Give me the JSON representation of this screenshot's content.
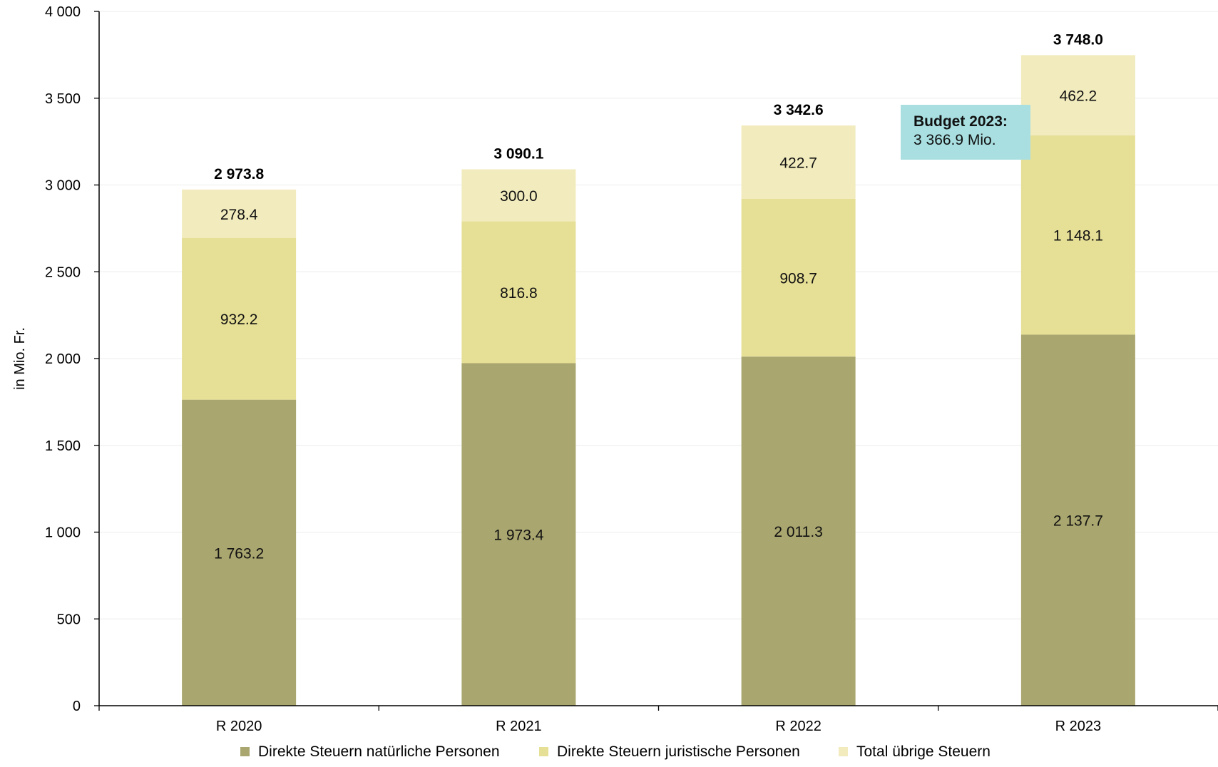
{
  "chart_data": {
    "type": "bar",
    "stacked": true,
    "title": "",
    "xlabel": "",
    "ylabel": "in Mio. Fr.",
    "ylim": [
      0,
      4000
    ],
    "yticks": [
      0,
      500,
      1000,
      1500,
      2000,
      2500,
      3000,
      3500,
      4000
    ],
    "ytick_labels": [
      "0",
      "500",
      "1 000",
      "1 500",
      "2 000",
      "2 500",
      "3 000",
      "3 500",
      "4 000"
    ],
    "categories": [
      "R 2020",
      "R 2021",
      "R 2022",
      "R 2023"
    ],
    "series": [
      {
        "name": "Direkte Steuern natürliche Personen",
        "color": "#a9a66f",
        "values": [
          1763.2,
          1973.4,
          2011.3,
          2137.7
        ],
        "labels": [
          "1 763.2",
          "1 973.4",
          "2 011.3",
          "2 137.7"
        ]
      },
      {
        "name": "Direkte Steuern juristische Personen",
        "color": "#e6df96",
        "values": [
          932.2,
          816.8,
          908.7,
          1148.1
        ],
        "labels": [
          "932.2",
          "816.8",
          "908.7",
          "1 148.1"
        ]
      },
      {
        "name": "Total übrige Steuern",
        "color": "#f1ebbd",
        "values": [
          278.4,
          300.0,
          422.7,
          462.2
        ],
        "labels": [
          "278.4",
          "300.0",
          "422.7",
          "462.2"
        ]
      }
    ],
    "totals": [
      2973.8,
      3090.1,
      3342.6,
      3748.0
    ],
    "total_labels": [
      "2 973.8",
      "3 090.1",
      "3 342.6",
      "3 748.0"
    ],
    "grid": true,
    "legend": "bottom",
    "annotation": {
      "title": "Budget 2023:",
      "value": "3 366.9 Mio.",
      "background": "#a9dfe1"
    }
  }
}
